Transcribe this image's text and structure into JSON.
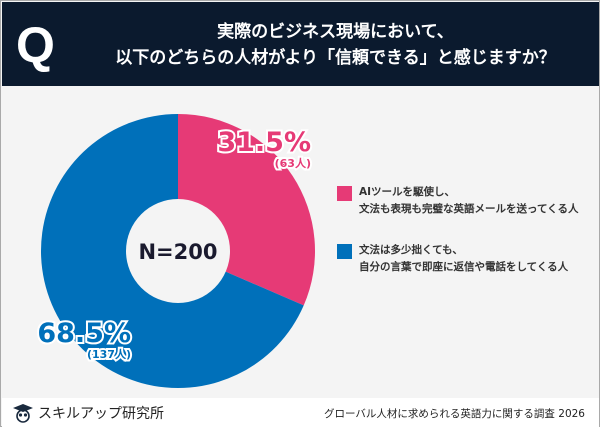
{
  "header": {
    "q": "Q",
    "title_line1": "実際のビジネス現場において、",
    "title_line2": "以下のどちらの人材がより「信頼できる」と感じますか？"
  },
  "chart_data": {
    "type": "pie",
    "donut": true,
    "center_label": "N=200",
    "categories": [
      "AIツールを駆使し、文法も表現も完璧な英語メールを送ってくる人",
      "文法は多少拙くても、自分の言葉で即座に返信や電話をしてくる人"
    ],
    "values": [
      31.5,
      68.5
    ],
    "counts": [
      "(63人)",
      "(137人)"
    ],
    "labels": [
      "31.5%",
      "68.5%"
    ],
    "colors": [
      "#e63a76",
      "#0070ba"
    ],
    "legend_position": "right"
  },
  "legend": [
    {
      "line1": "AIツールを駆使し、",
      "line2": "文法も表現も完璧な英語メールを送ってくる人"
    },
    {
      "line1": "文法は多少拙くても、",
      "line2": "自分の言葉で即座に返信や電話をしてくる人"
    }
  ],
  "footer": {
    "brand": "スキルアップ研究所",
    "source": "グローバル人材に求められる英語力に関する調査 2026"
  }
}
